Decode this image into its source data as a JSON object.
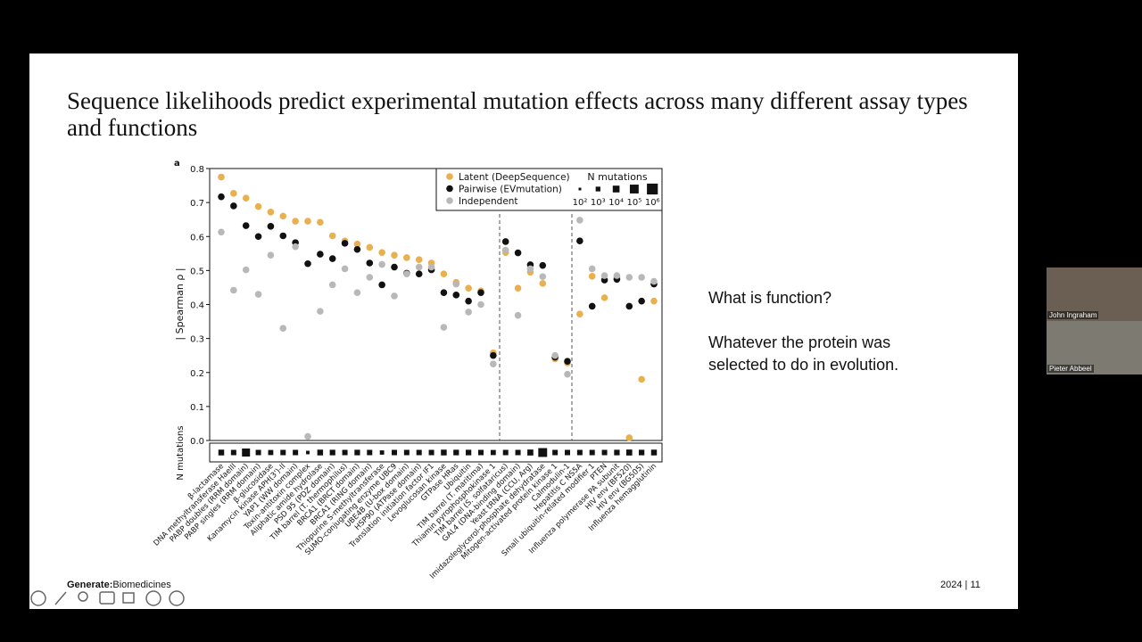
{
  "slide": {
    "title": "Sequence likelihoods predict experimental mutation effects across many different assay types and functions",
    "question": "What is function?",
    "answer": "Whatever the protein was selected to do in evolution.",
    "logo_bold": "Generate:",
    "logo_rest": "Biomedicines",
    "page": "2024 | 11"
  },
  "participants": [
    "John Ingraham",
    "Pieter Abbeel"
  ],
  "chart_data": {
    "type": "scatter",
    "panel_label": "a",
    "ylabel": "| Spearman ρ |",
    "strip_label": "N mutations",
    "ylim": [
      0,
      0.8
    ],
    "yticks": [
      {
        "value": 0,
        "label": "0.0"
      },
      {
        "value": 0.1,
        "label": "0.1"
      },
      {
        "value": 0.2,
        "label": "0.2"
      },
      {
        "value": 0.3,
        "label": "0.3"
      },
      {
        "value": 0.4,
        "label": "0.4"
      },
      {
        "value": 0.5,
        "label": "0.5"
      },
      {
        "value": 0.6,
        "label": "0.6"
      },
      {
        "value": 0.7,
        "label": "0.7"
      },
      {
        "value": 0.8,
        "label": "0.8"
      }
    ],
    "categories": [
      "β-lactamase",
      "DNA methyltransferase HaeIII",
      "PABP doubles (RRM domain)",
      "PABP singles (RRM domain)",
      "β-glucosidase",
      "Kanamycin kinase APH(3')-II",
      "YAP1 (WW domain)",
      "Toxin-antitoxin complex",
      "Aliphatic amide hydrolase",
      "PSD 95 (PDZ domain)",
      "TIM barrel (T. thermophilus)",
      "BRCA1 (BRCT domain)",
      "BRCA1 (RING domain)",
      "Thiopurine S-methyltransferase",
      "SUMO-conjugating enzyme UBC9",
      "UBE4B (U-box domain)",
      "HSP90 (ATPase domain)",
      "Translation initiation factor IF1",
      "Levoglucosan kinase",
      "GTPase HRas",
      "Ubiquitin",
      "TIM barrel (T. maritima)",
      "Thiamin pyrophosphokinase 1",
      "TIM barrel (S. solfataricus)",
      "GAL4 (DNA-binding domain)",
      "Yeast tRNA (CCU, Arg)",
      "Imidazoleglycerol-phosphate dehydratase",
      "Mitogen-activated protein kinase 1",
      "Calmodulin-1",
      "Hepatitis C NS5A",
      "Small ubiquitin-related modifier 1",
      "PTEN",
      "Influenza polymerase PA subunit",
      "HIV env (BF520)",
      "HIV env (BG505)",
      "Influenza hemagglutinin"
    ],
    "series": [
      {
        "name": "Latent (DeepSequence)",
        "color": "#e8b04f",
        "values": [
          0.775,
          0.727,
          0.713,
          0.688,
          0.672,
          0.66,
          0.645,
          0.645,
          0.642,
          0.602,
          0.587,
          0.578,
          0.568,
          0.553,
          0.545,
          0.538,
          0.532,
          0.522,
          0.49,
          0.465,
          0.448,
          0.44,
          0.258,
          0.553,
          0.448,
          0.495,
          0.462,
          0.24,
          0.228,
          0.372,
          0.483,
          0.42,
          0.48,
          0.008,
          0.18,
          0.41
        ]
      },
      {
        "name": "Pairwise (EVmutation)",
        "color": "#111111",
        "values": [
          0.717,
          0.69,
          0.632,
          0.6,
          0.63,
          0.602,
          0.582,
          0.52,
          0.548,
          0.535,
          0.58,
          0.562,
          0.522,
          0.458,
          0.51,
          0.492,
          0.49,
          0.502,
          0.435,
          0.428,
          0.41,
          0.435,
          0.25,
          0.585,
          0.552,
          0.517,
          0.515,
          0.245,
          0.233,
          0.587,
          0.395,
          0.472,
          0.474,
          0.395,
          0.41,
          0.46
        ]
      },
      {
        "name": "Independent",
        "color": "#b8b8b8",
        "values": [
          0.613,
          0.442,
          0.502,
          0.43,
          0.545,
          0.33,
          0.57,
          0.012,
          0.38,
          0.458,
          0.505,
          0.435,
          0.48,
          0.518,
          0.425,
          0.49,
          0.51,
          0.51,
          0.333,
          0.46,
          0.378,
          0.4,
          0.225,
          0.56,
          0.368,
          0.505,
          0.482,
          0.25,
          0.195,
          0.648,
          0.505,
          0.485,
          0.485,
          0.48,
          0.48,
          0.468
        ]
      }
    ],
    "n_mutations_log10": [
      3.5,
      3.3,
      4.6,
      3.3,
      3.2,
      3.3,
      3.3,
      2.4,
      3.5,
      3.4,
      3.3,
      3.4,
      3.3,
      2.8,
      3.3,
      3.3,
      3.3,
      3.3,
      3.5,
      3.4,
      3.4,
      3.3,
      3.2,
      3.3,
      3.3,
      3.6,
      5.0,
      3.3,
      3.3,
      3.3,
      3.3,
      3.3,
      3.4,
      3.6,
      3.4,
      3.5
    ],
    "size_legend": {
      "title": "N mutations",
      "values": [
        2,
        3,
        4,
        5,
        6
      ],
      "labels": [
        "10²",
        "10³",
        "10⁴",
        "10⁵",
        "10⁶"
      ]
    }
  }
}
